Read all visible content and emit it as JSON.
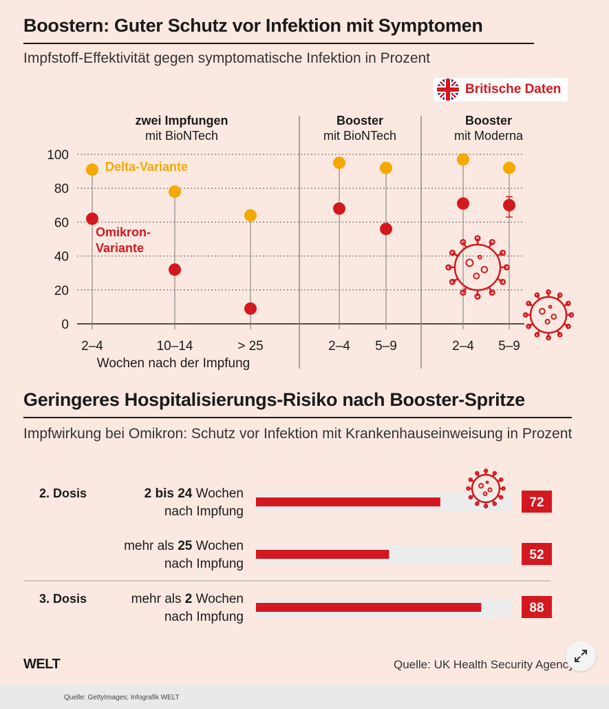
{
  "header1": {
    "title": "Boostern: Guter Schutz vor Infektion mit Symptomen",
    "subtitle": "Impfstoff-Effektivität gegen symptomatische Infektion in Prozent"
  },
  "badge": {
    "label": "Britische Daten",
    "icon": "uk-flag-icon"
  },
  "chart_data": [
    {
      "type": "scatter",
      "title": "Boostern: Guter Schutz vor Infektion mit Symptomen",
      "subtitle": "Impfstoff-Effektivität gegen symptomatische Infektion in Prozent",
      "xlabel": "Wochen nach der Impfung",
      "ylabel": "",
      "ylim": [
        0,
        100
      ],
      "yticks": [
        0,
        20,
        40,
        60,
        80,
        100
      ],
      "groups": [
        {
          "label_bold": "zwei Impfungen",
          "label": "mit BioNTech",
          "categories": [
            "2–4",
            "10–14",
            "> 25"
          ]
        },
        {
          "label_bold": "Booster",
          "label": "mit BioNTech",
          "categories": [
            "2–4",
            "5–9"
          ]
        },
        {
          "label_bold": "Booster",
          "label": "mit Moderna",
          "categories": [
            "2–4",
            "5–9"
          ]
        }
      ],
      "categories": [
        "2–4",
        "10–14",
        "> 25",
        "2–4",
        "5–9",
        "2–4",
        "5–9"
      ],
      "series": [
        {
          "name": "Delta-Variante",
          "color": "#f5a800",
          "values": [
            91,
            78,
            64,
            95,
            92,
            97,
            92
          ]
        },
        {
          "name": "Omikron-Variante",
          "name_lines": [
            "Omikron-",
            "Variante"
          ],
          "color": "#d4181f",
          "values": [
            62,
            32,
            9,
            68,
            56,
            71,
            70
          ]
        }
      ],
      "error_bar": {
        "category_index": 6,
        "series": "Omikron-Variante",
        "low": 63,
        "high": 75
      },
      "grid": true
    },
    {
      "type": "bar",
      "title": "Geringeres Hospitalisierungs-Risiko nach Booster-Spritze",
      "subtitle": "Impfwirkung bei Omikron: Schutz vor Infektion mit Krankenhauseinweisung in Prozent",
      "xlim": [
        0,
        100
      ],
      "color": "#d4181f",
      "rows": [
        {
          "dose": "2. Dosis",
          "label_pre": "",
          "label_bold": "2 bis 24",
          "label_post": " Wochen",
          "label_line2": "nach Impfung",
          "value": 72
        },
        {
          "dose": "",
          "label_pre": "mehr als ",
          "label_bold": "25",
          "label_post": " Wochen",
          "label_line2": "nach Impfung",
          "value": 52
        },
        {
          "dose": "3. Dosis",
          "label_pre": "mehr als ",
          "label_bold": "2",
          "label_post": " Wochen",
          "label_line2": "nach Impfung",
          "value": 88
        }
      ]
    }
  ],
  "footer": {
    "logo": "WELT",
    "source": "Quelle: UK Health Security Agency",
    "credit": "Quelle: GettyImages; Infografik WELT"
  },
  "colors": {
    "background": "#fbe9e1",
    "delta": "#f5a800",
    "omikron": "#d4181f"
  }
}
